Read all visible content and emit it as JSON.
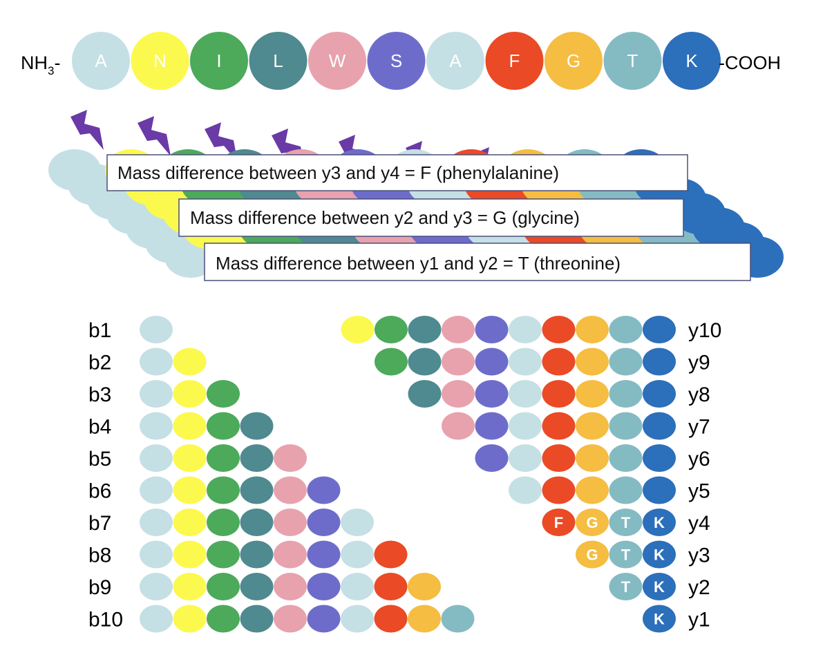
{
  "peptide": {
    "n_term": "NH",
    "n_term_sub": "3",
    "n_term_suffix": "-",
    "c_term": "-COOH",
    "residues": [
      {
        "letter": "A",
        "color": "#c4e0e4"
      },
      {
        "letter": "N",
        "color": "#fbf94e"
      },
      {
        "letter": "I",
        "color": "#4caa5a"
      },
      {
        "letter": "L",
        "color": "#4e8a8f"
      },
      {
        "letter": "W",
        "color": "#e8a2ad"
      },
      {
        "letter": "S",
        "color": "#6e6ccb"
      },
      {
        "letter": "A",
        "color": "#c4e0e4"
      },
      {
        "letter": "F",
        "color": "#ea4a26"
      },
      {
        "letter": "G",
        "color": "#f5bd41"
      },
      {
        "letter": "T",
        "color": "#84bbc3"
      },
      {
        "letter": "K",
        "color": "#2c6fbb"
      }
    ]
  },
  "fragmentation_icon": {
    "name": "lightning-bolt-icon",
    "color": "#6a3aa6"
  },
  "notes": [
    "Mass difference between y3 and y4 = F (phenylalanine)",
    "Mass difference between y2 and y3 = G (glycine)",
    "Mass difference between y1 and y2 = T (threonine)"
  ],
  "b_ions": [
    "b1",
    "b2",
    "b3",
    "b4",
    "b5",
    "b6",
    "b7",
    "b8",
    "b9",
    "b10"
  ],
  "y_ions": [
    "y10",
    "y9",
    "y8",
    "y7",
    "y6",
    "y5",
    "y4",
    "y3",
    "y2",
    "y1"
  ],
  "labeled_y_rows": [
    "y4",
    "y3",
    "y2",
    "y1"
  ]
}
